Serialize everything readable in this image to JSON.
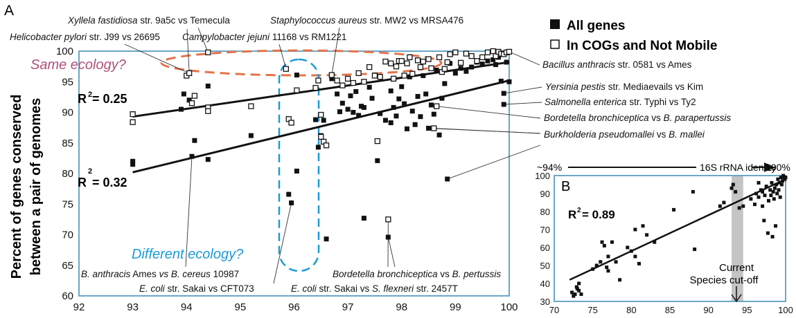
{
  "colors": {
    "axis_frame": "#6aa7c8",
    "same_ecology": "#e2734a",
    "same_ecology_text": "#b0507a",
    "different_ecology": "#1a9ad8",
    "species_cutoff_band": "#c4c4c4",
    "marker": "#111111"
  },
  "chart_data": [
    {
      "id": "A",
      "type": "scatter",
      "panel_label": "A",
      "ylabel_line1": "Percent of genes conserved",
      "ylabel_line2": "between a pair of genomes",
      "xlim": [
        92,
        100
      ],
      "ylim": [
        60,
        100
      ],
      "xticks": [
        "92",
        "93",
        "94",
        "95",
        "96",
        "97",
        "98",
        "99",
        "100"
      ],
      "yticks": [
        "60",
        "65",
        "70",
        "75",
        "80",
        "85",
        "90",
        "95",
        "100"
      ],
      "grid": false,
      "legend": [
        {
          "marker": "filled-square",
          "label": "All genes"
        },
        {
          "marker": "open-square",
          "label": "In COGs and Not Mobile"
        }
      ],
      "series": [
        {
          "name": "All genes",
          "marker": "filled-square",
          "r2_label": "R",
          "r2_value": "= 0.32",
          "fit": [
            [
              93,
              80.2
            ],
            [
              100,
              95.2
            ]
          ],
          "points": [
            [
              93,
              82
            ],
            [
              93,
              81.5
            ],
            [
              93.9,
              90.5
            ],
            [
              93.95,
              93
            ],
            [
              94.05,
              92
            ],
            [
              94.1,
              82.8
            ],
            [
              94.15,
              85.4
            ],
            [
              94.4,
              82.3
            ],
            [
              94.4,
              94.3
            ],
            [
              95.2,
              86.2
            ],
            [
              95.9,
              76.6
            ],
            [
              95.95,
              75.2
            ],
            [
              96.05,
              80.4
            ],
            [
              96.05,
              96.1
            ],
            [
              96.4,
              88.8
            ],
            [
              96.45,
              84.3
            ],
            [
              96.5,
              86.2
            ],
            [
              96.55,
              88.7
            ],
            [
              96.6,
              69.3
            ],
            [
              96.7,
              95.5
            ],
            [
              96.8,
              93
            ],
            [
              96.85,
              90.1
            ],
            [
              96.9,
              91.5
            ],
            [
              97,
              90.5
            ],
            [
              97.05,
              92.7
            ],
            [
              97.1,
              90
            ],
            [
              97.15,
              93.4
            ],
            [
              97.2,
              89.5
            ],
            [
              97.25,
              91
            ],
            [
              97.3,
              72.7
            ],
            [
              97.3,
              90.8
            ],
            [
              97.4,
              94.1
            ],
            [
              97.45,
              92.3
            ],
            [
              97.5,
              96.1
            ],
            [
              97.55,
              82.1
            ],
            [
              97.6,
              89.8
            ],
            [
              97.7,
              88.7
            ],
            [
              97.75,
              69.6
            ],
            [
              97.8,
              93.5
            ],
            [
              97.8,
              88.3
            ],
            [
              97.85,
              90.8
            ],
            [
              97.9,
              89.4
            ],
            [
              97.95,
              92.2
            ],
            [
              98,
              94.2
            ],
            [
              98.05,
              91.4
            ],
            [
              98.1,
              87.3
            ],
            [
              98.15,
              95.8
            ],
            [
              98.2,
              90.2
            ],
            [
              98.25,
              88
            ],
            [
              98.3,
              92.6
            ],
            [
              98.35,
              89.3
            ],
            [
              98.4,
              96
            ],
            [
              98.45,
              93
            ],
            [
              98.5,
              87.4
            ],
            [
              98.55,
              91.2
            ],
            [
              98.6,
              89.7
            ],
            [
              98.65,
              96.9
            ],
            [
              98.7,
              86.3
            ],
            [
              98.75,
              92.3
            ],
            [
              98.8,
              94.7
            ],
            [
              98.85,
              79.1
            ],
            [
              98.9,
              98
            ],
            [
              99,
              96.4
            ],
            [
              99.1,
              97.2
            ],
            [
              99.2,
              96.7
            ],
            [
              99.3,
              97.4
            ],
            [
              99.4,
              98.2
            ],
            [
              99.5,
              97.9
            ],
            [
              99.6,
              98.4
            ],
            [
              99.7,
              98.6
            ],
            [
              99.75,
              97.8
            ],
            [
              99.8,
              99
            ],
            [
              99.85,
              95.1
            ],
            [
              99.9,
              93.1
            ],
            [
              99.9,
              91.3
            ],
            [
              99.95,
              98.2
            ],
            [
              100,
              95
            ]
          ]
        },
        {
          "name": "In COGs and Not Mobile",
          "marker": "open-square",
          "r2_label": "R",
          "r2_value": "= 0.25",
          "fit": [
            [
              93,
              89.3
            ],
            [
              100,
              98.2
            ]
          ],
          "points": [
            [
              93,
              89.7
            ],
            [
              93,
              88.4
            ],
            [
              94,
              96
            ],
            [
              94.05,
              96.4
            ],
            [
              94.1,
              91.5
            ],
            [
              94.15,
              92.7
            ],
            [
              94.4,
              90.8
            ],
            [
              94.4,
              90.2
            ],
            [
              94.4,
              99.8
            ],
            [
              95.2,
              91
            ],
            [
              95.85,
              97.1
            ],
            [
              95.9,
              88.9
            ],
            [
              95.95,
              88.3
            ],
            [
              96.05,
              93.6
            ],
            [
              96.4,
              94
            ],
            [
              96.45,
              95.2
            ],
            [
              96.5,
              89.6
            ],
            [
              96.5,
              86
            ],
            [
              96.55,
              85.2
            ],
            [
              96.6,
              84.6
            ],
            [
              96.7,
              96.1
            ],
            [
              96.8,
              95.2
            ],
            [
              96.9,
              94.4
            ],
            [
              97,
              95.5
            ],
            [
              97.1,
              94.8
            ],
            [
              97.2,
              96.4
            ],
            [
              97.3,
              95
            ],
            [
              97.4,
              97.4
            ],
            [
              97.5,
              96
            ],
            [
              97.55,
              85.3
            ],
            [
              97.6,
              95.8
            ],
            [
              97.7,
              98.3
            ],
            [
              97.75,
              72.5
            ],
            [
              97.8,
              98
            ],
            [
              97.85,
              95.5
            ],
            [
              97.9,
              97.5
            ],
            [
              97.95,
              98.4
            ],
            [
              98,
              98.4
            ],
            [
              98.05,
              96
            ],
            [
              98.1,
              98
            ],
            [
              98.15,
              99
            ],
            [
              98.2,
              96.3
            ],
            [
              98.3,
              98.5
            ],
            [
              98.35,
              97.4
            ],
            [
              98.4,
              98.3
            ],
            [
              98.5,
              98.7
            ],
            [
              98.55,
              97.2
            ],
            [
              98.6,
              87.4
            ],
            [
              98.65,
              91
            ],
            [
              98.7,
              99
            ],
            [
              98.75,
              96.6
            ],
            [
              98.8,
              97.1
            ],
            [
              98.85,
              98.2
            ],
            [
              98.9,
              99.5
            ],
            [
              99,
              99.8
            ],
            [
              99.1,
              98.1
            ],
            [
              99.2,
              99.6
            ],
            [
              99.3,
              99.2
            ],
            [
              99.4,
              98.4
            ],
            [
              99.5,
              99
            ],
            [
              99.6,
              99.8
            ],
            [
              99.7,
              100
            ],
            [
              99.75,
              99.2
            ],
            [
              99.8,
              99.9
            ],
            [
              99.85,
              99.6
            ],
            [
              99.9,
              99.5
            ],
            [
              99.95,
              99.8
            ],
            [
              100,
              99.9
            ]
          ]
        }
      ],
      "annotations": {
        "same_ecology": "Same ecology?",
        "different_ecology": "Different ecology?",
        "labels": [
          {
            "italic": "Xyllela fastidiosa",
            "rest": " str. 9a5c vs Temecula"
          },
          {
            "italic": "Helicobacter pylori",
            "rest": " str. J99 vs 26695"
          },
          {
            "italic": "Campylobacter jejuni",
            "rest": " 11168 vs RM1221"
          },
          {
            "italic": "Staphylococcus aureus",
            "rest": " str. MW2 vs MRSA476"
          },
          {
            "italic": "Bacillus anthracis",
            "rest": " str. 0581 vs Ames"
          },
          {
            "italic": "Yersinia pestis",
            "rest": " str. Mediaevails vs Kim"
          },
          {
            "italic": "Salmonella enterica",
            "rest": " str. Typhi vs Ty2"
          },
          {
            "italic": "Bordetella bronchiceptica",
            "rest": " vs ",
            "italic2": "B. parapertussis"
          },
          {
            "italic": "Burkholderia pseudomallei",
            "rest": " vs ",
            "italic2": "B. mallei"
          },
          {
            "italic": "B. anthracis",
            "rest": " Ames ",
            "italic2": "vs B. cereus",
            "rest2": " 10987"
          },
          {
            "italic": "E. coli",
            "rest": " str. Sakai vs CFT073"
          },
          {
            "italic": "Bordetella bronchiceptica",
            "rest": " vs ",
            "italic2": "B. pertussis"
          },
          {
            "italic": "E. coli",
            "rest": " str. Sakai vs ",
            "italic2": "S. flexneri",
            "rest2": " str. 2457T"
          }
        ]
      }
    },
    {
      "id": "B",
      "type": "scatter",
      "panel_label": "B",
      "xlim": [
        70,
        100
      ],
      "ylim": [
        30,
        100
      ],
      "xticks": [
        "70",
        "75",
        "80",
        "85",
        "90",
        "95",
        "100"
      ],
      "yticks": [
        "30",
        "40",
        "50",
        "60",
        "70",
        "80",
        "90",
        "100"
      ],
      "grid": false,
      "top_axis": {
        "left": "~94%",
        "middle": "16S rRNA identity",
        "right": "100%"
      },
      "r2_label": "R",
      "r2_value": "= 0.89",
      "fit": [
        [
          72,
          42
        ],
        [
          100,
          98
        ]
      ],
      "cutoff_band": [
        93,
        94.5
      ],
      "cutoff_label_line1": "Current",
      "cutoff_label_line2": "Species cut-off",
      "points": [
        [
          72.3,
          35
        ],
        [
          72.5,
          33
        ],
        [
          72.7,
          34
        ],
        [
          72.9,
          38
        ],
        [
          73,
          37
        ],
        [
          73.2,
          36
        ],
        [
          73.5,
          34
        ],
        [
          73.2,
          40
        ],
        [
          75,
          48
        ],
        [
          75.5,
          50
        ],
        [
          76,
          52
        ],
        [
          76.2,
          63
        ],
        [
          76.5,
          61
        ],
        [
          76.8,
          49
        ],
        [
          77,
          47
        ],
        [
          77,
          55
        ],
        [
          77.5,
          63
        ],
        [
          78,
          52
        ],
        [
          78.5,
          42
        ],
        [
          79.5,
          60
        ],
        [
          80,
          58
        ],
        [
          80.5,
          55
        ],
        [
          80.5,
          70
        ],
        [
          81,
          51
        ],
        [
          81.5,
          72
        ],
        [
          82,
          67
        ],
        [
          83,
          63
        ],
        [
          85.5,
          81
        ],
        [
          88,
          91
        ],
        [
          88.2,
          59
        ],
        [
          91.5,
          83
        ],
        [
          92,
          85
        ],
        [
          93,
          93
        ],
        [
          93.2,
          95
        ],
        [
          93.5,
          91
        ],
        [
          94,
          82
        ],
        [
          94.5,
          83
        ],
        [
          95.5,
          87
        ],
        [
          96,
          84
        ],
        [
          96.2,
          90
        ],
        [
          96.5,
          88
        ],
        [
          96.5,
          96
        ],
        [
          96.8,
          92
        ],
        [
          97,
          83
        ],
        [
          97,
          91
        ],
        [
          97.2,
          75
        ],
        [
          97.3,
          89
        ],
        [
          97.5,
          94
        ],
        [
          97.7,
          68
        ],
        [
          97.8,
          86
        ],
        [
          98,
          92
        ],
        [
          98.1,
          89
        ],
        [
          98.2,
          96
        ],
        [
          98.3,
          66
        ],
        [
          98.4,
          91
        ],
        [
          98.5,
          87
        ],
        [
          98.6,
          93
        ],
        [
          98.7,
          72
        ],
        [
          98.8,
          95
        ],
        [
          98.9,
          90
        ],
        [
          99,
          98
        ],
        [
          99.1,
          92
        ],
        [
          99.2,
          96
        ],
        [
          99.3,
          88
        ],
        [
          99.4,
          99
        ],
        [
          99.5,
          95
        ],
        [
          99.6,
          97
        ],
        [
          99.7,
          100
        ],
        [
          99.8,
          99
        ],
        [
          99.9,
          98
        ],
        [
          100,
          99
        ]
      ]
    }
  ]
}
